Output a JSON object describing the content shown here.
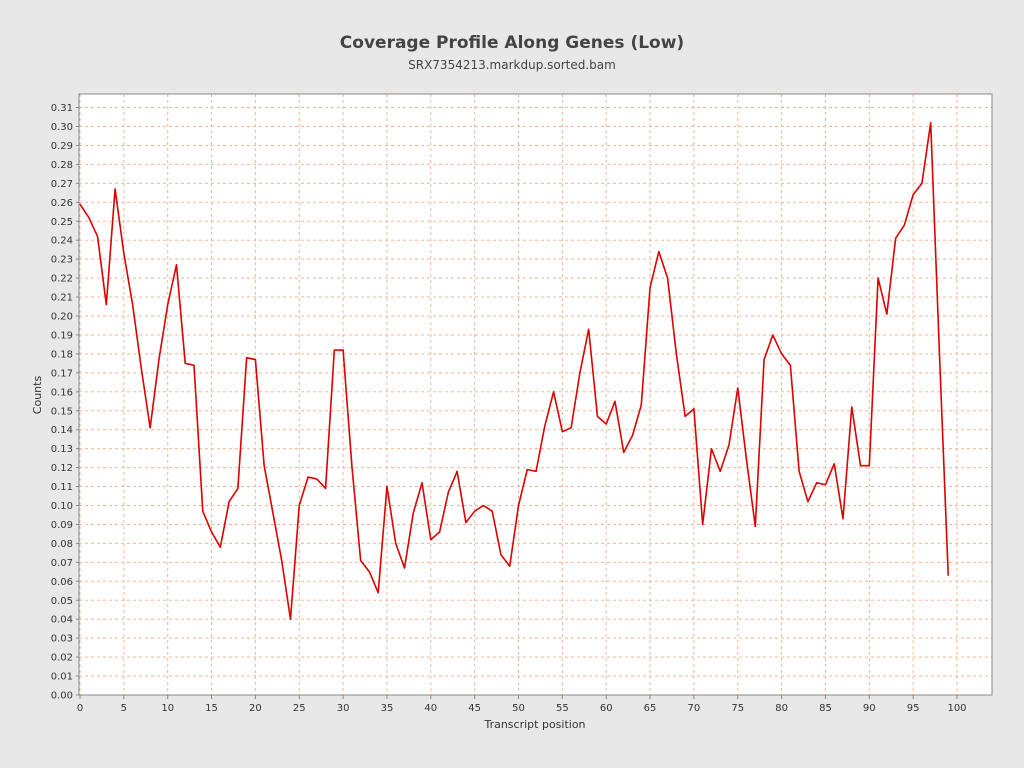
{
  "chart_data": {
    "type": "line",
    "title": "Coverage Profile Along Genes (Low)",
    "subtitle": "SRX7354213.markdup.sorted.bam",
    "xlabel": "Transcript position",
    "ylabel": "Counts",
    "xlim": [
      0,
      104
    ],
    "ylim": [
      0,
      0.315
    ],
    "x_ticks": [
      0,
      5,
      10,
      15,
      20,
      25,
      30,
      35,
      40,
      45,
      50,
      55,
      60,
      65,
      70,
      75,
      80,
      85,
      90,
      95,
      100
    ],
    "x_tick_labels": [
      "0",
      "5",
      "10",
      "15",
      "20",
      "25",
      "30",
      "35",
      "40",
      "45",
      "50",
      "55",
      "60",
      "65",
      "70",
      "75",
      "80",
      "85",
      "90",
      "95",
      "100"
    ],
    "y_ticks": [
      0.0,
      0.01,
      0.02,
      0.03,
      0.04,
      0.05,
      0.06,
      0.07,
      0.08,
      0.09,
      0.1,
      0.11,
      0.12,
      0.13,
      0.14,
      0.15,
      0.16,
      0.17,
      0.18,
      0.19,
      0.2,
      0.21,
      0.22,
      0.23,
      0.24,
      0.25,
      0.26,
      0.27,
      0.28,
      0.29,
      0.3,
      0.31
    ],
    "y_tick_labels": [
      "0.00",
      "0.01",
      "0.02",
      "0.03",
      "0.04",
      "0.05",
      "0.06",
      "0.07",
      "0.08",
      "0.09",
      "0.10",
      "0.11",
      "0.12",
      "0.13",
      "0.14",
      "0.15",
      "0.16",
      "0.17",
      "0.18",
      "0.19",
      "0.20",
      "0.21",
      "0.22",
      "0.23",
      "0.24",
      "0.25",
      "0.26",
      "0.27",
      "0.28",
      "0.29",
      "0.30",
      "0.31"
    ],
    "grid": true,
    "colors": {
      "line": "#dd0000",
      "grid": "#f0b896",
      "plot_background": "#ffffff",
      "page_background": "#e8e8e8",
      "frame": "#888888"
    },
    "series": [
      {
        "x": [
          0,
          1,
          2,
          3,
          4,
          5,
          6,
          7,
          8,
          9,
          10,
          11,
          12,
          13,
          14,
          15,
          16,
          17,
          18,
          19,
          20,
          21,
          22,
          23,
          24,
          25,
          26,
          27,
          28,
          29,
          30,
          31,
          32,
          33,
          34,
          35,
          36,
          37,
          38,
          39,
          40,
          41,
          42,
          43,
          44,
          45,
          46,
          47,
          48,
          49,
          50,
          51,
          52,
          53,
          54,
          55,
          56,
          57,
          58,
          59,
          60,
          61,
          62,
          63,
          64,
          65,
          66,
          67,
          68,
          69,
          70,
          71,
          72,
          73,
          74,
          75,
          76,
          77,
          78,
          79,
          80,
          81,
          82,
          83,
          84,
          85,
          86,
          87,
          88,
          89,
          90,
          91,
          92,
          93,
          94,
          95,
          96,
          97,
          98,
          99
        ],
        "values": [
          0.259,
          0.252,
          0.242,
          0.206,
          0.267,
          0.233,
          0.206,
          0.172,
          0.141,
          0.177,
          0.206,
          0.227,
          0.175,
          0.174,
          0.097,
          0.086,
          0.078,
          0.102,
          0.109,
          0.178,
          0.177,
          0.121,
          0.096,
          0.071,
          0.04,
          0.1,
          0.115,
          0.114,
          0.109,
          0.182,
          0.182,
          0.121,
          0.071,
          0.065,
          0.054,
          0.11,
          0.08,
          0.067,
          0.096,
          0.112,
          0.082,
          0.086,
          0.107,
          0.118,
          0.091,
          0.097,
          0.1,
          0.097,
          0.074,
          0.068,
          0.1,
          0.119,
          0.118,
          0.142,
          0.16,
          0.139,
          0.141,
          0.17,
          0.193,
          0.147,
          0.143,
          0.155,
          0.128,
          0.137,
          0.153,
          0.215,
          0.234,
          0.22,
          0.18,
          0.147,
          0.151,
          0.09,
          0.13,
          0.118,
          0.132,
          0.162,
          0.124,
          0.089,
          0.177,
          0.19,
          0.18,
          0.174,
          0.118,
          0.102,
          0.112,
          0.111,
          0.122,
          0.093,
          0.152,
          0.121,
          0.121,
          0.22,
          0.201,
          0.241,
          0.248,
          0.264,
          0.27,
          0.302,
          0.18,
          0.063
        ]
      }
    ]
  }
}
